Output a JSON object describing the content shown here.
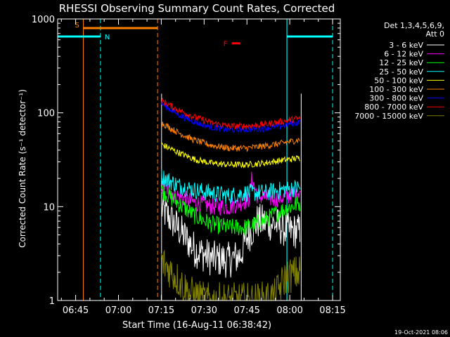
{
  "chart_data": {
    "type": "line",
    "title": "RHESSI Observing Summary Count Rates, Corrected",
    "xlabel": "Start Time (16-Aug-11 06:38:42)",
    "ylabel": "Corrected Count Rate (s⁻¹ detector⁻¹)",
    "yscale": "log",
    "ylim": [
      1,
      1000
    ],
    "xlim_minutes": [
      0,
      99
    ],
    "y_ticks": [
      {
        "value": 1,
        "label": "1"
      },
      {
        "value": 10,
        "label": "10"
      },
      {
        "value": 100,
        "label": "100"
      },
      {
        "value": 1000,
        "label": "1000"
      }
    ],
    "x_ticks": [
      {
        "minute": 6.3,
        "label": "06:45"
      },
      {
        "minute": 21.3,
        "label": "07:00"
      },
      {
        "minute": 36.3,
        "label": "07:15"
      },
      {
        "minute": 51.3,
        "label": "07:30"
      },
      {
        "minute": 66.3,
        "label": "07:45"
      },
      {
        "minute": 81.3,
        "label": "08:00"
      },
      {
        "minute": 96.3,
        "label": "08:15"
      }
    ],
    "detectors": "Det 1,3,4,5,6,9,",
    "attenuator": "Att 0",
    "legend_position": "right",
    "series": [
      {
        "name": "3 - 6 keV",
        "color": "#ffffff",
        "x": [
          36.4,
          42,
          48,
          54,
          60,
          64,
          66,
          70,
          76,
          81,
          85
        ],
        "y": [
          9.5,
          6.0,
          3.5,
          2.8,
          2.7,
          3.0,
          4.5,
          7.0,
          6.5,
          5.5,
          5.5
        ]
      },
      {
        "name": "6 - 12 keV",
        "color": "#ff00ff",
        "x": [
          36.4,
          42,
          48,
          54,
          60,
          64,
          67,
          68,
          70,
          76,
          81,
          85
        ],
        "y": [
          17,
          13,
          11,
          10,
          10,
          11,
          12,
          20,
          13,
          12,
          13,
          15
        ]
      },
      {
        "name": "12 - 25 keV",
        "color": "#00ff00",
        "x": [
          36.4,
          42,
          48,
          54,
          60,
          66,
          72,
          78,
          85
        ],
        "y": [
          15,
          11,
          8,
          6.5,
          6.0,
          6.0,
          7.0,
          9.0,
          11
        ]
      },
      {
        "name": "25 - 50 keV",
        "color": "#00ffff",
        "x": [
          36.4,
          42,
          48,
          54,
          60,
          66,
          72,
          78,
          85
        ],
        "y": [
          21,
          17,
          15,
          14,
          13,
          14,
          14,
          15,
          16
        ]
      },
      {
        "name": "50 - 100 keV",
        "color": "#ffff00",
        "x": [
          36.4,
          42,
          48,
          54,
          60,
          66,
          72,
          78,
          85
        ],
        "y": [
          46,
          38,
          32,
          29,
          28,
          28,
          29,
          31,
          33
        ]
      },
      {
        "name": "100 - 300 keV",
        "color": "#ff8000",
        "x": [
          36.4,
          42,
          48,
          54,
          60,
          66,
          72,
          78,
          85
        ],
        "y": [
          78,
          62,
          51,
          45,
          42,
          42,
          44,
          47,
          52
        ]
      },
      {
        "name": "300 - 800 keV",
        "color": "#0000ff",
        "x": [
          36.4,
          42,
          48,
          54,
          60,
          66,
          72,
          78,
          85
        ],
        "y": [
          125,
          97,
          80,
          70,
          66,
          66,
          68,
          72,
          80
        ]
      },
      {
        "name": "800 - 7000 keV",
        "color": "#ff0000",
        "x": [
          36.4,
          42,
          48,
          54,
          60,
          66,
          72,
          78,
          85
        ],
        "y": [
          135,
          108,
          90,
          78,
          72,
          72,
          75,
          80,
          88
        ]
      },
      {
        "name": "7000 - 15000 keV",
        "color": "#808000",
        "x": [
          36.4,
          40,
          46,
          52,
          58,
          64,
          70,
          76,
          80,
          85
        ],
        "y": [
          2.6,
          2.0,
          1.2,
          1.0,
          1.0,
          1.0,
          1.0,
          1.1,
          1.8,
          2.0
        ]
      }
    ],
    "annotations": [
      {
        "label": "S",
        "color": "#ff8000",
        "kind": "saa",
        "start_minute": 9,
        "end_minute": 35,
        "level": 800
      },
      {
        "label": "N",
        "color": "#00ffff",
        "kind": "night",
        "start_minute": 15,
        "level": 650
      },
      {
        "label": "F",
        "color": "#ff0000",
        "kind": "flare",
        "start_minute": 61,
        "end_minute": 64,
        "level": 550
      }
    ],
    "night_intervals": [
      {
        "start_minute": 0,
        "end_minute": 15
      },
      {
        "start_minute": 80.3,
        "end_minute": 96.3
      }
    ],
    "saa_boundaries_minutes": [
      9,
      35
    ],
    "data_gap_boundaries_minutes": [
      36.4,
      85.3
    ]
  },
  "footer": {
    "timestamp": "19-Oct-2021 08:06"
  }
}
